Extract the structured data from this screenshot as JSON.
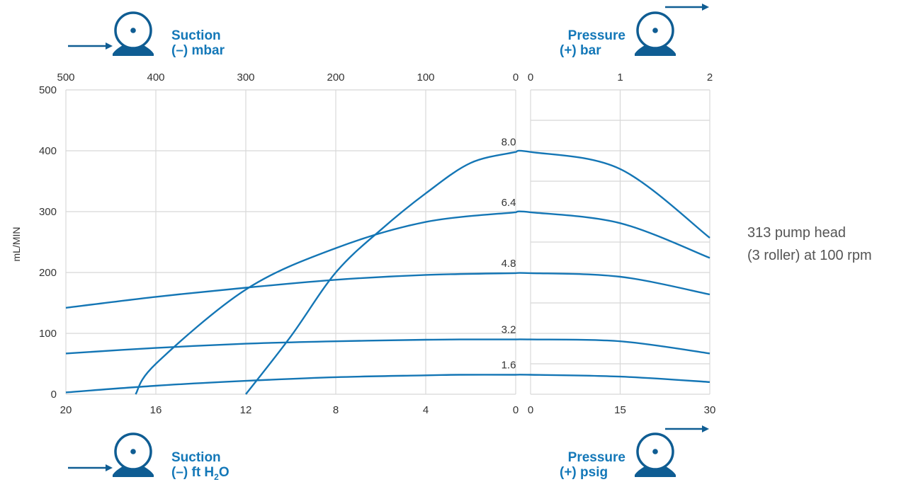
{
  "chart_data": {
    "type": "line",
    "ylabel": "mL/MIN",
    "ylim": [
      0,
      500
    ],
    "y_ticks": [
      "0",
      "100",
      "200",
      "300",
      "400",
      "500"
    ],
    "grid": true,
    "note": [
      "313 pump head",
      "(3 roller) at 100 rpm"
    ],
    "panels": {
      "suction": {
        "top_axis": {
          "title": [
            "Suction",
            "(–) mbar"
          ],
          "ticks": [
            "500",
            "400",
            "300",
            "200",
            "100",
            "0"
          ],
          "range": [
            500,
            0
          ]
        },
        "bottom_axis": {
          "title": [
            "Suction",
            "(–) ft H",
            "2",
            "O"
          ],
          "ticks": [
            "20",
            "16",
            "12",
            "8",
            "4",
            "0"
          ],
          "range": [
            20,
            0
          ]
        }
      },
      "pressure": {
        "top_axis": {
          "title": [
            "Pressure",
            "(+) bar"
          ],
          "ticks": [
            "0",
            "1",
            "2"
          ],
          "range": [
            0,
            2
          ]
        },
        "bottom_axis": {
          "title": [
            "Pressure",
            "(+) psig"
          ],
          "ticks": [
            "0",
            "15",
            "30"
          ],
          "range": [
            0,
            30
          ]
        }
      }
    },
    "series": [
      {
        "name": "1.6",
        "suction": {
          "x": [
            20,
            16,
            12,
            8,
            4,
            2.5,
            0
          ],
          "y": [
            3,
            14,
            22,
            28,
            31,
            32,
            32
          ]
        },
        "pressure": {
          "x": [
            0,
            15,
            30
          ],
          "y": [
            32,
            29,
            20
          ]
        }
      },
      {
        "name": "3.2",
        "suction": {
          "x": [
            20,
            16,
            12,
            8,
            4,
            2.5,
            0
          ],
          "y": [
            67,
            76,
            83,
            87,
            89.5,
            90,
            90
          ]
        },
        "pressure": {
          "x": [
            0,
            15,
            30
          ],
          "y": [
            90,
            87,
            67
          ]
        }
      },
      {
        "name": "4.8",
        "suction": {
          "x": [
            20,
            16,
            12,
            8,
            4,
            0
          ],
          "y": [
            142,
            160,
            175,
            188,
            196,
            199
          ]
        },
        "pressure": {
          "x": [
            0,
            15,
            30
          ],
          "y": [
            199,
            193,
            164
          ]
        }
      },
      {
        "name": "6.4",
        "suction": {
          "x": [
            16.9,
            16,
            12,
            8,
            4,
            0
          ],
          "y": [
            0,
            50,
            172,
            240,
            283,
            299
          ]
        },
        "pressure": {
          "x": [
            0,
            15,
            30
          ],
          "y": [
            299,
            281,
            224
          ]
        }
      },
      {
        "name": "8.0",
        "suction": {
          "x": [
            12,
            10,
            8,
            6,
            4,
            2,
            0
          ],
          "y": [
            0,
            95,
            200,
            270,
            330,
            380,
            398
          ]
        },
        "pressure": {
          "x": [
            0,
            15,
            30
          ],
          "y": [
            398,
            370,
            257
          ]
        }
      }
    ]
  }
}
